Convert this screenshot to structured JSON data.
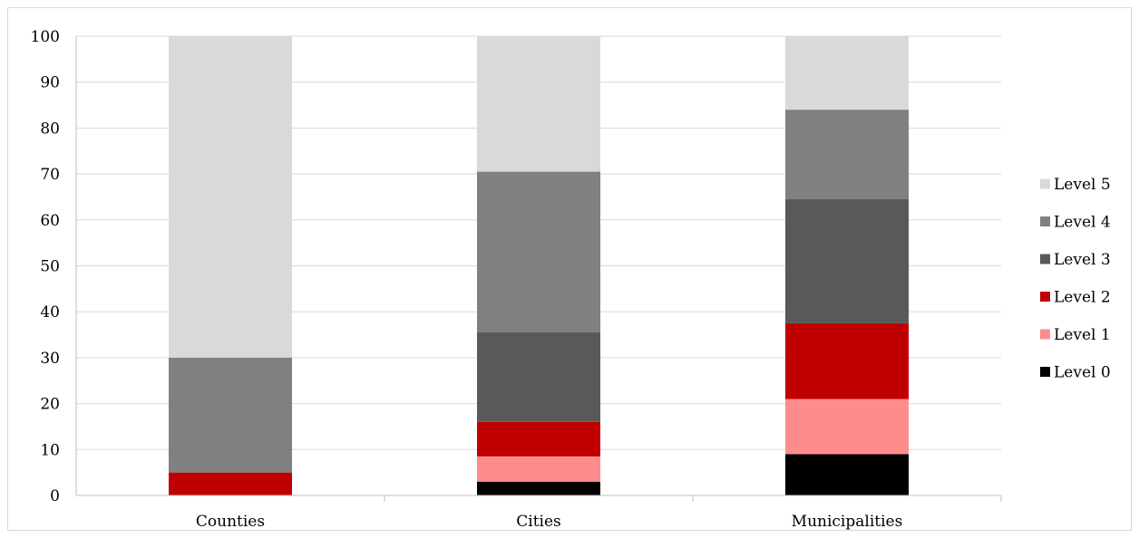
{
  "chart_data": {
    "type": "bar",
    "stacked": true,
    "categories": [
      "Counties",
      "Cities",
      "Municipalities"
    ],
    "series": [
      {
        "name": "Level 0",
        "color": "#000000",
        "values": [
          0,
          3,
          9
        ]
      },
      {
        "name": "Level 1",
        "color": "#ff8c8c",
        "values": [
          0,
          5.5,
          12
        ]
      },
      {
        "name": "Level 2",
        "color": "#c00000",
        "values": [
          5,
          7.5,
          16.5
        ]
      },
      {
        "name": "Level 3",
        "color": "#595959",
        "values": [
          0,
          19.5,
          27
        ]
      },
      {
        "name": "Level 4",
        "color": "#808080",
        "values": [
          25,
          35,
          19.5
        ]
      },
      {
        "name": "Level 5",
        "color": "#d9d9d9",
        "values": [
          70,
          29.5,
          16
        ]
      }
    ],
    "ylim": [
      0,
      100
    ],
    "yticks": [
      0,
      10,
      20,
      30,
      40,
      50,
      60,
      70,
      80,
      90,
      100
    ],
    "ytick_labels": [
      "0",
      "10",
      "20",
      "30",
      "40",
      "50",
      "60",
      "70",
      "80",
      "90",
      "100"
    ],
    "grid": true,
    "legend_position": "right",
    "legend_order": [
      "Level 5",
      "Level 4",
      "Level 3",
      "Level 2",
      "Level 1",
      "Level 0"
    ],
    "title": "",
    "xlabel": "",
    "ylabel": ""
  }
}
